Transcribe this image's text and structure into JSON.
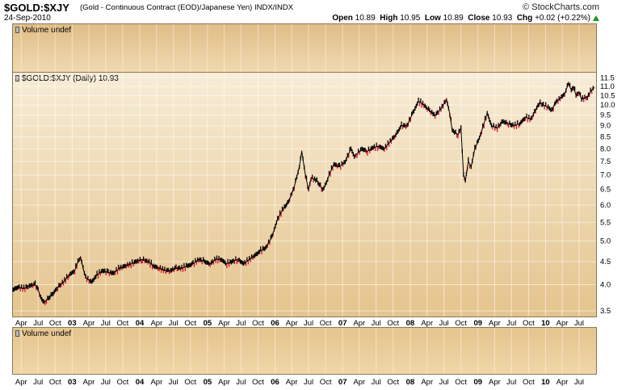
{
  "header": {
    "symbol": "$GOLD:$XJY",
    "description": "(Gold - Continuous Contract (EOD)/Japanese Yen)",
    "exchange": "INDX/INDX",
    "date": "24-Sep-2010",
    "logo": "© StockCharts.com",
    "ohlc": {
      "open_label": "Open",
      "open": "10.89",
      "high_label": "High",
      "high": "10.95",
      "low_label": "Low",
      "low": "10.89",
      "close_label": "Close",
      "close": "10.93",
      "chg_label": "Chg",
      "chg": "+0.02 (+0.22%)"
    }
  },
  "panels": {
    "top_volume_label": "Volume undef",
    "main_label": "$GOLD:$XJY (Daily) 10.93",
    "bottom_volume_label": "Volume undef"
  },
  "colors": {
    "up": "#000000",
    "down": "#d0102a",
    "change_up": "#0a8a0a"
  },
  "chart_data": {
    "type": "line",
    "title": "$GOLD:$XJY (Daily) 10.93",
    "scale": "log",
    "ylim": [
      3.4,
      11.8
    ],
    "y_ticks": [
      "3.5",
      "4.0",
      "4.5",
      "5.0",
      "5.5",
      "6.0",
      "6.5",
      "7.0",
      "7.5",
      "8.0",
      "8.5",
      "9.0",
      "9.5",
      "10.0",
      "10.5",
      "11.0",
      "11.5"
    ],
    "x_ticks": [
      {
        "label": "Apr",
        "d": "2002-04-01"
      },
      {
        "label": "Jul",
        "d": "2002-07-01"
      },
      {
        "label": "Oct",
        "d": "2002-10-01"
      },
      {
        "label": "03",
        "d": "2003-01-01",
        "bold": true
      },
      {
        "label": "Apr",
        "d": "2003-04-01"
      },
      {
        "label": "Jul",
        "d": "2003-07-01"
      },
      {
        "label": "Oct",
        "d": "2003-10-01"
      },
      {
        "label": "04",
        "d": "2004-01-01",
        "bold": true
      },
      {
        "label": "Apr",
        "d": "2004-04-01"
      },
      {
        "label": "Jul",
        "d": "2004-07-01"
      },
      {
        "label": "Oct",
        "d": "2004-10-01"
      },
      {
        "label": "05",
        "d": "2005-01-01",
        "bold": true
      },
      {
        "label": "Apr",
        "d": "2005-04-01"
      },
      {
        "label": "Jul",
        "d": "2005-07-01"
      },
      {
        "label": "Oct",
        "d": "2005-10-01"
      },
      {
        "label": "06",
        "d": "2006-01-01",
        "bold": true
      },
      {
        "label": "Apr",
        "d": "2006-04-01"
      },
      {
        "label": "Jul",
        "d": "2006-07-01"
      },
      {
        "label": "Oct",
        "d": "2006-10-01"
      },
      {
        "label": "07",
        "d": "2007-01-01",
        "bold": true
      },
      {
        "label": "Apr",
        "d": "2007-04-01"
      },
      {
        "label": "Jul",
        "d": "2007-07-01"
      },
      {
        "label": "Oct",
        "d": "2007-10-01"
      },
      {
        "label": "08",
        "d": "2008-01-01",
        "bold": true
      },
      {
        "label": "Apr",
        "d": "2008-04-01"
      },
      {
        "label": "Jul",
        "d": "2008-07-01"
      },
      {
        "label": "Oct",
        "d": "2008-10-01"
      },
      {
        "label": "09",
        "d": "2009-01-01",
        "bold": true
      },
      {
        "label": "Apr",
        "d": "2009-04-01"
      },
      {
        "label": "Jul",
        "d": "2009-07-01"
      },
      {
        "label": "Oct",
        "d": "2009-10-01"
      },
      {
        "label": "10",
        "d": "2010-01-01",
        "bold": true
      },
      {
        "label": "Apr",
        "d": "2010-04-01"
      },
      {
        "label": "Jul",
        "d": "2010-07-01"
      }
    ],
    "series": [
      {
        "x": [
          "2002-02-15",
          "2002-03-15",
          "2002-04-15",
          "2002-05-15",
          "2002-06-15",
          "2002-07-01",
          "2002-07-15",
          "2002-08-01",
          "2002-08-15",
          "2002-09-15",
          "2002-10-15",
          "2002-11-15",
          "2002-12-15",
          "2003-01-15",
          "2003-02-01",
          "2003-02-15",
          "2003-03-01",
          "2003-03-15",
          "2003-04-15",
          "2003-05-15",
          "2003-06-15",
          "2003-07-15",
          "2003-08-15",
          "2003-09-15",
          "2003-10-15",
          "2003-11-15",
          "2003-12-15",
          "2004-01-15",
          "2004-02-15",
          "2004-03-15",
          "2004-04-15",
          "2004-05-15",
          "2004-06-15",
          "2004-07-15",
          "2004-08-15",
          "2004-09-15",
          "2004-10-15",
          "2004-11-15",
          "2004-12-15",
          "2005-01-15",
          "2005-02-15",
          "2005-03-15",
          "2005-04-15",
          "2005-05-15",
          "2005-06-15",
          "2005-07-15",
          "2005-08-15",
          "2005-09-15",
          "2005-10-15",
          "2005-11-15",
          "2005-12-15",
          "2006-01-15",
          "2006-02-15",
          "2006-03-15",
          "2006-04-15",
          "2006-05-12",
          "2006-05-25",
          "2006-06-14",
          "2006-07-01",
          "2006-07-15",
          "2006-08-15",
          "2006-09-15",
          "2006-10-05",
          "2006-10-20",
          "2006-11-15",
          "2006-12-15",
          "2007-01-15",
          "2007-02-15",
          "2007-03-05",
          "2007-03-20",
          "2007-04-15",
          "2007-05-15",
          "2007-06-15",
          "2007-07-15",
          "2007-08-15",
          "2007-09-15",
          "2007-10-15",
          "2007-11-15",
          "2007-12-15",
          "2008-01-15",
          "2008-02-15",
          "2008-03-15",
          "2008-04-15",
          "2008-05-15",
          "2008-06-15",
          "2008-07-15",
          "2008-08-01",
          "2008-08-15",
          "2008-09-15",
          "2008-10-01",
          "2008-10-15",
          "2008-10-25",
          "2008-11-10",
          "2008-11-25",
          "2008-12-15",
          "2009-01-15",
          "2009-02-20",
          "2009-03-15",
          "2009-04-15",
          "2009-05-15",
          "2009-06-15",
          "2009-07-15",
          "2009-08-15",
          "2009-09-15",
          "2009-10-15",
          "2009-11-15",
          "2009-12-03",
          "2009-12-20",
          "2010-01-15",
          "2010-02-05",
          "2010-02-20",
          "2010-03-15",
          "2010-04-15",
          "2010-05-05",
          "2010-05-20",
          "2010-06-01",
          "2010-06-15",
          "2010-07-01",
          "2010-07-15",
          "2010-08-01",
          "2010-08-15",
          "2010-09-01",
          "2010-09-15",
          "2010-09-24"
        ],
        "y": [
          3.9,
          3.95,
          3.92,
          3.98,
          4.0,
          3.9,
          3.75,
          3.65,
          3.7,
          3.8,
          3.95,
          4.05,
          4.2,
          4.3,
          4.5,
          4.6,
          4.35,
          4.15,
          4.05,
          4.2,
          4.3,
          4.25,
          4.25,
          4.35,
          4.4,
          4.45,
          4.5,
          4.55,
          4.5,
          4.4,
          4.35,
          4.3,
          4.3,
          4.35,
          4.35,
          4.4,
          4.45,
          4.55,
          4.5,
          4.45,
          4.55,
          4.55,
          4.45,
          4.5,
          4.55,
          4.45,
          4.55,
          4.65,
          4.75,
          4.85,
          5.1,
          5.6,
          5.9,
          6.1,
          6.6,
          7.3,
          7.9,
          7.0,
          6.5,
          6.9,
          6.8,
          6.5,
          6.7,
          7.0,
          7.4,
          7.3,
          7.5,
          8.0,
          7.7,
          7.8,
          8.0,
          7.9,
          8.05,
          8.1,
          8.0,
          8.3,
          8.6,
          9.0,
          9.0,
          9.6,
          10.2,
          10.0,
          9.7,
          9.5,
          9.8,
          10.3,
          9.6,
          8.8,
          8.6,
          8.9,
          7.0,
          6.8,
          7.5,
          7.3,
          8.0,
          8.6,
          9.6,
          9.0,
          8.9,
          9.2,
          9.1,
          9.0,
          9.1,
          9.4,
          9.3,
          9.9,
          10.1,
          10.0,
          9.9,
          9.7,
          10.1,
          10.3,
          10.6,
          11.2,
          10.8,
          11.0,
          10.5,
          10.7,
          10.3,
          10.4,
          10.4,
          10.7,
          10.9,
          10.93
        ]
      }
    ]
  }
}
